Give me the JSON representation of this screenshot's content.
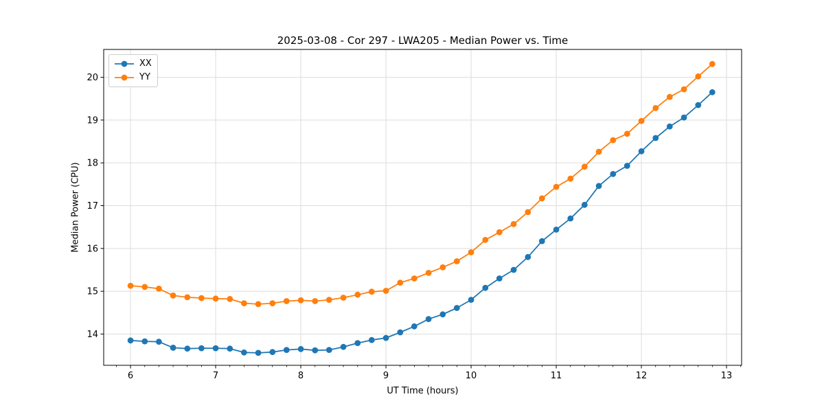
{
  "chart_data": {
    "type": "line",
    "title": "2025-03-08 - Cor 297 - LWA205 - Median Power vs. Time",
    "xlabel": "UT Time (hours)",
    "ylabel": "Median Power (CPU)",
    "xlim": [
      5.685,
      13.177
    ],
    "ylim": [
      13.27,
      20.65
    ],
    "grid": true,
    "legend_position": "upper left",
    "x_ticks": [
      6,
      7,
      8,
      9,
      10,
      11,
      12,
      13
    ],
    "x_tick_labels": [
      "6",
      "7",
      "8",
      "9",
      "10",
      "11",
      "12",
      "13"
    ],
    "x_minor_tick_step": 0.1667,
    "y_ticks": [
      14,
      15,
      16,
      17,
      18,
      19,
      20
    ],
    "y_tick_labels": [
      "14",
      "15",
      "16",
      "17",
      "18",
      "19",
      "20"
    ],
    "colors": {
      "grid": "#dcdcdc",
      "spine": "#000000",
      "text": "#000000",
      "legend_border": "#cccccc"
    },
    "x": [
      6.0,
      6.167,
      6.333,
      6.5,
      6.667,
      6.833,
      7.0,
      7.167,
      7.333,
      7.5,
      7.667,
      7.833,
      8.0,
      8.167,
      8.333,
      8.5,
      8.667,
      8.833,
      9.0,
      9.167,
      9.333,
      9.5,
      9.667,
      9.833,
      10.0,
      10.167,
      10.333,
      10.5,
      10.667,
      10.833,
      11.0,
      11.167,
      11.333,
      11.5,
      11.667,
      11.833,
      12.0,
      12.167,
      12.333,
      12.5,
      12.667,
      12.833
    ],
    "series": [
      {
        "name": "XX",
        "color": "#1f77b4",
        "values": [
          13.85,
          13.83,
          13.82,
          13.68,
          13.66,
          13.67,
          13.67,
          13.66,
          13.57,
          13.56,
          13.58,
          13.63,
          13.65,
          13.62,
          13.63,
          13.7,
          13.79,
          13.86,
          13.91,
          14.04,
          14.18,
          14.35,
          14.46,
          14.61,
          14.8,
          15.08,
          15.3,
          15.5,
          15.8,
          16.17,
          16.44,
          16.7,
          17.02,
          17.46,
          17.74,
          17.93,
          18.27,
          18.58,
          18.85,
          19.06,
          19.35,
          19.65
        ]
      },
      {
        "name": "YY",
        "color": "#ff7f0e",
        "values": [
          15.13,
          15.1,
          15.06,
          14.9,
          14.86,
          14.84,
          14.83,
          14.82,
          14.72,
          14.7,
          14.72,
          14.77,
          14.79,
          14.77,
          14.8,
          14.85,
          14.92,
          14.99,
          15.01,
          15.2,
          15.3,
          15.43,
          15.56,
          15.7,
          15.91,
          16.2,
          16.38,
          16.57,
          16.85,
          17.17,
          17.44,
          17.63,
          17.91,
          18.26,
          18.53,
          18.68,
          18.98,
          19.28,
          19.54,
          19.72,
          20.02,
          20.31
        ]
      }
    ]
  }
}
